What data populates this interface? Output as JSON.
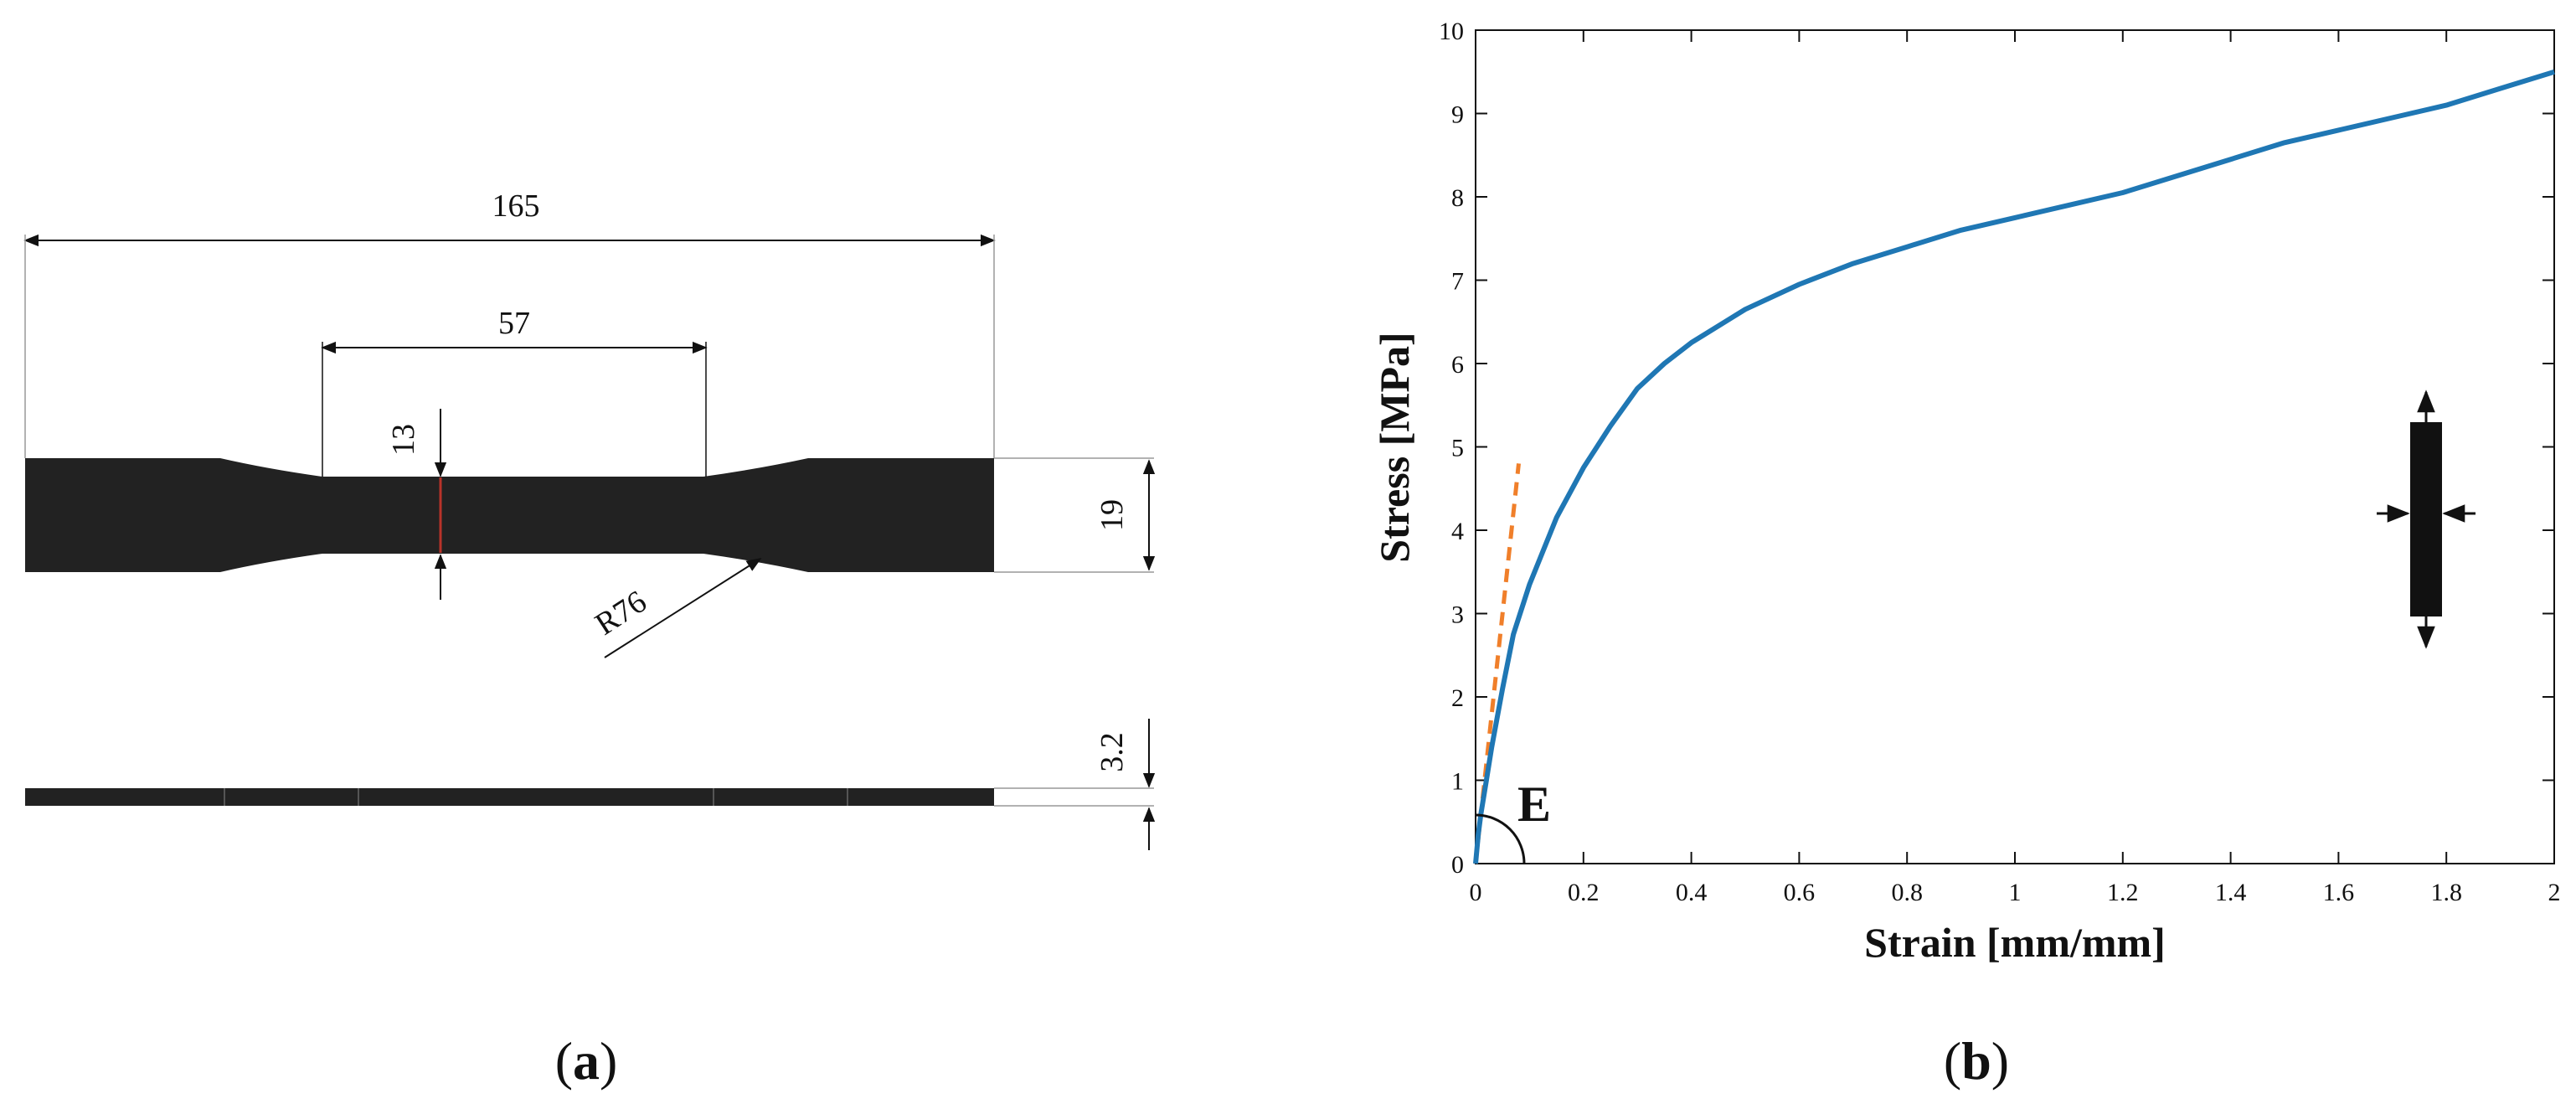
{
  "panel_a": {
    "label_open": "(",
    "label_letter": "a",
    "label_close": ")",
    "dimensions": {
      "overall_length": "165",
      "gauge_length": "57",
      "narrow_width": "13",
      "overall_width": "19",
      "radius": "R76",
      "thickness": "3.2"
    },
    "colors": {
      "specimen": "#222222",
      "section_line": "#b8332a"
    }
  },
  "panel_b": {
    "label_open": "(",
    "label_letter": "b",
    "label_close": ")",
    "modulus_label": "E",
    "colors": {
      "curve": "#1f77b4",
      "tangent": "#f07f2a"
    }
  },
  "chart_data": {
    "type": "line",
    "xlabel": "Strain [mm/mm]",
    "ylabel": "Stress [MPa]",
    "xlim": [
      0,
      2
    ],
    "ylim": [
      0,
      10
    ],
    "xticks": [
      "0",
      "0.2",
      "0.4",
      "0.6",
      "0.8",
      "1",
      "1.2",
      "1.4",
      "1.6",
      "1.8",
      "2"
    ],
    "yticks": [
      "0",
      "1",
      "2",
      "3",
      "4",
      "5",
      "6",
      "7",
      "8",
      "9",
      "10"
    ],
    "grid": false,
    "series": [
      {
        "style": "solid",
        "x": [
          0,
          0.005,
          0.01,
          0.02,
          0.03,
          0.05,
          0.07,
          0.1,
          0.15,
          0.2,
          0.25,
          0.3,
          0.35,
          0.4,
          0.5,
          0.6,
          0.7,
          0.8,
          0.9,
          1.0,
          1.1,
          1.2,
          1.3,
          1.4,
          1.5,
          1.6,
          1.7,
          1.8,
          1.9,
          2.0
        ],
        "y": [
          0,
          0.35,
          0.6,
          1.0,
          1.4,
          2.1,
          2.75,
          3.35,
          4.15,
          4.75,
          5.25,
          5.7,
          6.0,
          6.25,
          6.65,
          6.95,
          7.2,
          7.4,
          7.6,
          7.75,
          7.9,
          8.05,
          8.25,
          8.45,
          8.65,
          8.8,
          8.95,
          9.1,
          9.3,
          9.5
        ]
      },
      {
        "style": "dashed",
        "x": [
          0,
          0.08
        ],
        "y": [
          0,
          4.8
        ]
      }
    ]
  }
}
